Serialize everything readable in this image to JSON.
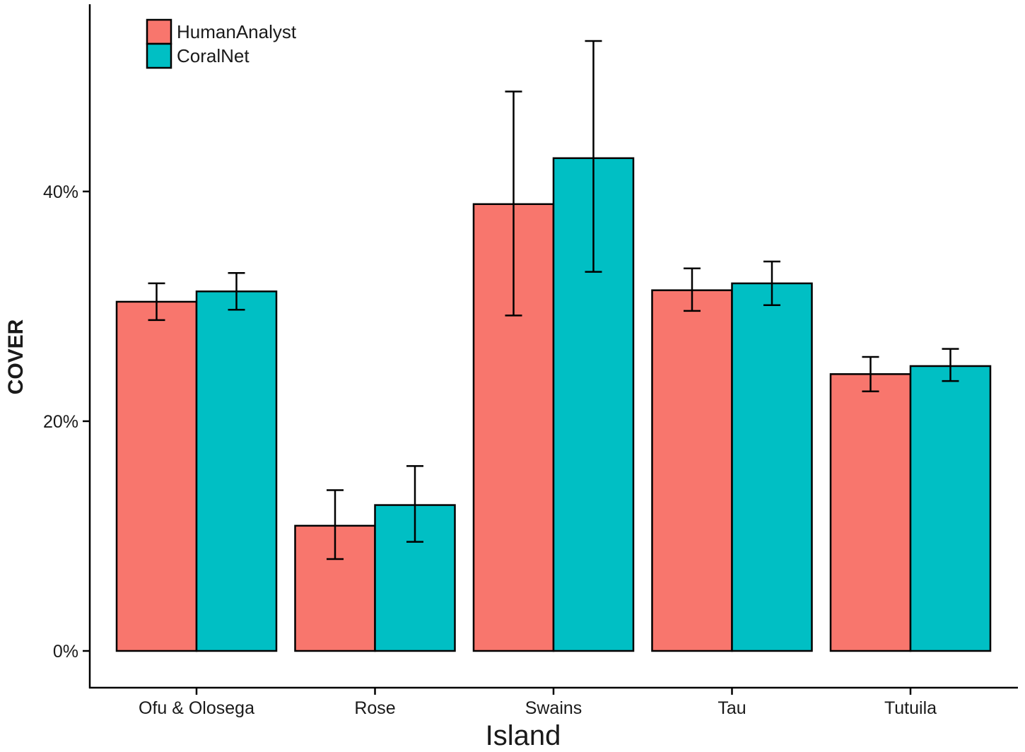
{
  "chart_data": {
    "type": "bar",
    "title": "",
    "xlabel": "Island",
    "ylabel": "COVER",
    "categories": [
      "Ofu & Olosega",
      "Rose",
      "Swains",
      "Tau",
      "Tutuila"
    ],
    "series": [
      {
        "name": "HumanAnalyst",
        "color": "#F8766D",
        "values": [
          30.4,
          10.9,
          38.9,
          31.4,
          24.1
        ],
        "err_low": [
          28.8,
          8.0,
          29.2,
          29.6,
          22.6
        ],
        "err_high": [
          32.0,
          14.0,
          48.7,
          33.3,
          25.6
        ]
      },
      {
        "name": "CoralNet",
        "color": "#00BFC4",
        "values": [
          31.3,
          12.7,
          42.9,
          32.0,
          24.8
        ],
        "err_low": [
          29.7,
          9.5,
          33.0,
          30.1,
          23.5
        ],
        "err_high": [
          32.9,
          16.1,
          53.1,
          33.9,
          26.3
        ]
      }
    ],
    "ylim": [
      -3.2,
      56.3
    ],
    "yticks": [
      0,
      20,
      40
    ],
    "ytick_labels": [
      "0%",
      "20%",
      "40%"
    ],
    "grid": false,
    "legend_position": "top-left"
  }
}
